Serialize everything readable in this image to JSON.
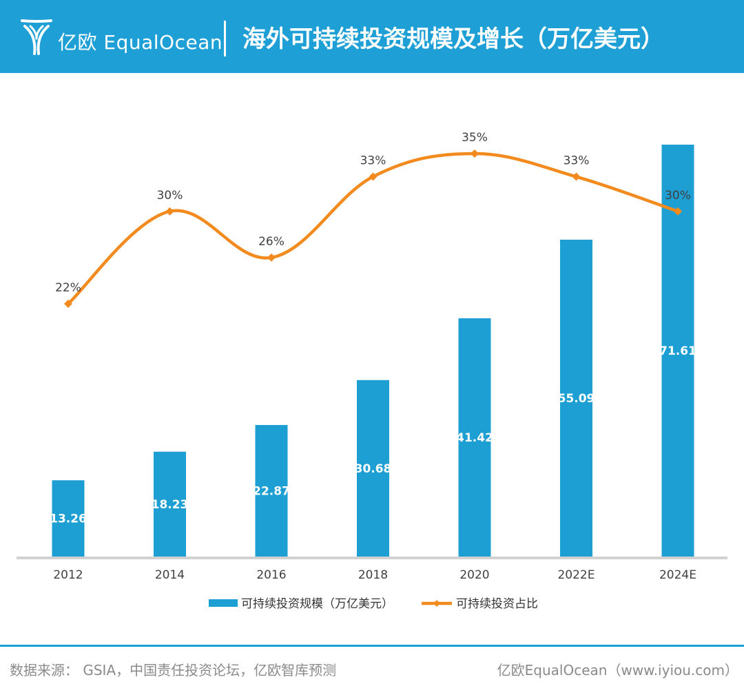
{
  "header": {
    "brand": "亿欧 EqualOcean",
    "title": "海外可持续投资规模及增长（万亿美元）"
  },
  "chart_data": {
    "type": "bar",
    "categories": [
      "2012",
      "2014",
      "2016",
      "2018",
      "2020",
      "2022E",
      "2024E"
    ],
    "series": [
      {
        "name": "可持续投资规模（万亿美元）",
        "kind": "bar",
        "color": "#1e9fd4",
        "values": [
          13.26,
          18.23,
          22.87,
          30.68,
          41.42,
          55.09,
          71.61
        ],
        "labels": [
          "13.26",
          "18.23",
          "22.87",
          "30.68",
          "41.42",
          "55.09",
          "71.61"
        ]
      },
      {
        "name": "可持续投资占比",
        "kind": "line",
        "color": "#f28a1e",
        "values": [
          22,
          30,
          26,
          33,
          35,
          33,
          30
        ],
        "labels": [
          "22%",
          "30%",
          "26%",
          "33%",
          "35%",
          "33%",
          "30%"
        ]
      }
    ],
    "ylim_bar": [
      0,
      75
    ],
    "ylim_line": [
      0,
      40
    ],
    "grid": false,
    "legend_position": "bottom"
  },
  "footer": {
    "source": "数据来源： GSIA，中国责任投资论坛，亿欧智库预测",
    "credit": "亿欧EqualOcean（www.iyiou.com）"
  }
}
